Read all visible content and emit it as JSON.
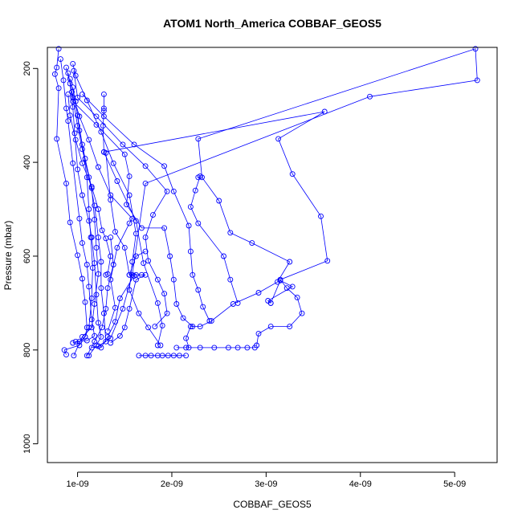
{
  "chart_data": {
    "type": "line",
    "title": "ATOM1 North_America COBBAF_GEOS5",
    "xlabel": "COBBAF_GEOS5",
    "ylabel": "Pressure (mbar)",
    "xlim": [
      6.8e-10,
      5.45e-09
    ],
    "ylim": [
      1040,
      155
    ],
    "y_reversed": true,
    "grid": false,
    "color": "#0000ff",
    "marker": "open-circle",
    "x_ticks": [
      {
        "value": 1e-09,
        "label": "1e-09"
      },
      {
        "value": 2e-09,
        "label": "2e-09"
      },
      {
        "value": 3e-09,
        "label": "3e-09"
      },
      {
        "value": 4e-09,
        "label": "4e-09"
      },
      {
        "value": 5e-09,
        "label": "5e-09"
      }
    ],
    "y_ticks": [
      {
        "value": 200,
        "label": "200"
      },
      {
        "value": 400,
        "label": "400"
      },
      {
        "value": 600,
        "label": "600"
      },
      {
        "value": 800,
        "label": "800"
      },
      {
        "value": 1000,
        "label": "1000"
      }
    ],
    "series": [
      {
        "points": [
          [
            1.65e-09,
            812
          ],
          [
            1.72e-09,
            812
          ],
          [
            1.78e-09,
            812
          ],
          [
            1.85e-09,
            812
          ],
          [
            1.9e-09,
            812
          ],
          [
            1.96e-09,
            812
          ],
          [
            2.02e-09,
            812
          ],
          [
            2.08e-09,
            812
          ],
          [
            2.15e-09,
            812
          ]
        ]
      },
      {
        "points": [
          [
            2.05e-09,
            795
          ],
          [
            2.15e-09,
            795
          ],
          [
            2.3e-09,
            795
          ],
          [
            2.45e-09,
            795
          ],
          [
            2.6e-09,
            795
          ],
          [
            2.7e-09,
            795
          ],
          [
            2.8e-09,
            795
          ],
          [
            2.88e-09,
            795
          ]
        ]
      },
      {
        "points": [
          [
            2.18e-09,
            795
          ],
          [
            2.15e-09,
            775
          ],
          [
            2.2e-09,
            750
          ],
          [
            2.3e-09,
            750
          ],
          [
            2.42e-09,
            738
          ],
          [
            2.65e-09,
            702
          ],
          [
            2.92e-09,
            678
          ],
          [
            3.12e-09,
            655
          ],
          [
            3.25e-09,
            612
          ],
          [
            2.85e-09,
            572
          ],
          [
            2.62e-09,
            550
          ],
          [
            2.5e-09,
            482
          ],
          [
            2.32e-09,
            432
          ],
          [
            2.28e-09,
            350
          ],
          [
            5.22e-09,
            158
          ],
          [
            5.24e-09,
            225
          ],
          [
            4.1e-09,
            260
          ],
          [
            1.72e-09,
            445
          ],
          [
            1.58e-09,
            640
          ],
          [
            1.48e-09,
            712
          ],
          [
            1.35e-09,
            775
          ],
          [
            1.22e-09,
            792
          ]
        ]
      },
      {
        "points": [
          [
            2.9e-09,
            790
          ],
          [
            2.92e-09,
            765
          ],
          [
            3.05e-09,
            750
          ],
          [
            3.25e-09,
            750
          ],
          [
            3.38e-09,
            722
          ],
          [
            3.33e-09,
            688
          ],
          [
            3.22e-09,
            668
          ],
          [
            3.15e-09,
            650
          ],
          [
            3.65e-09,
            610
          ],
          [
            3.58e-09,
            515
          ],
          [
            3.28e-09,
            425
          ],
          [
            3.13e-09,
            350
          ],
          [
            3.62e-09,
            292
          ],
          [
            1.28e-09,
            378
          ],
          [
            1.42e-09,
            440
          ],
          [
            1.62e-09,
            525
          ],
          [
            1.7e-09,
            615
          ],
          [
            1.85e-09,
            700
          ],
          [
            1.9e-09,
            748
          ],
          [
            1.85e-09,
            790
          ]
        ]
      },
      {
        "points": [
          [
            1.88e-09,
            790
          ],
          [
            1.75e-09,
            752
          ],
          [
            1.65e-09,
            722
          ],
          [
            1.55e-09,
            672
          ],
          [
            1.58e-09,
            612
          ],
          [
            1.62e-09,
            552
          ],
          [
            1.55e-09,
            470
          ],
          [
            1.38e-09,
            402
          ],
          [
            1.25e-09,
            335
          ],
          [
            1.1e-09,
            268
          ],
          [
            9.8e-10,
            215
          ],
          [
            9.5e-10,
            190
          ]
        ]
      },
      {
        "points": [
          [
            1.82e-09,
            750
          ],
          [
            1.95e-09,
            722
          ],
          [
            1.92e-09,
            680
          ],
          [
            1.85e-09,
            650
          ],
          [
            1.75e-09,
            610
          ],
          [
            1.72e-09,
            560
          ],
          [
            1.8e-09,
            512
          ],
          [
            1.95e-09,
            462
          ],
          [
            1.72e-09,
            408
          ],
          [
            1.48e-09,
            362
          ],
          [
            1.2e-09,
            302
          ],
          [
            1e-09,
            262
          ],
          [
            9.6e-10,
            205
          ]
        ]
      },
      {
        "points": [
          [
            2.22e-09,
            750
          ],
          [
            2.12e-09,
            732
          ],
          [
            2.05e-09,
            702
          ],
          [
            2.02e-09,
            650
          ],
          [
            1.98e-09,
            600
          ],
          [
            1.92e-09,
            540
          ],
          [
            1.68e-09,
            540
          ],
          [
            1.52e-09,
            490
          ],
          [
            1.55e-09,
            430
          ],
          [
            1.5e-09,
            383
          ],
          [
            1.2e-09,
            320
          ],
          [
            9.5e-10,
            270
          ]
        ]
      },
      {
        "points": [
          [
            2.4e-09,
            738
          ],
          [
            2.33e-09,
            708
          ],
          [
            2.28e-09,
            672
          ],
          [
            2.22e-09,
            640
          ],
          [
            2.2e-09,
            590
          ],
          [
            2.18e-09,
            535
          ],
          [
            2.02e-09,
            462
          ],
          [
            1.92e-09,
            408
          ],
          [
            1.6e-09,
            362
          ],
          [
            1.28e-09,
            302
          ],
          [
            1.05e-09,
            255
          ]
        ]
      },
      {
        "points": [
          [
            2.7e-09,
            700
          ],
          [
            2.62e-09,
            650
          ],
          [
            2.55e-09,
            600
          ],
          [
            2.28e-09,
            530
          ],
          [
            2.2e-09,
            495
          ],
          [
            2.25e-09,
            460
          ],
          [
            2.3e-09,
            430
          ],
          [
            2.28e-09,
            432
          ]
        ]
      },
      {
        "points": [
          [
            3.05e-09,
            700
          ],
          [
            3.02e-09,
            695
          ],
          [
            3.28e-09,
            665
          ],
          [
            3.15e-09,
            652
          ],
          [
            3.05e-09,
            700
          ]
        ]
      },
      {
        "points": [
          [
            1.72e-09,
            590
          ],
          [
            1.62e-09,
            600
          ],
          [
            1.55e-09,
            640
          ],
          [
            1.62e-09,
            640
          ],
          [
            1.68e-09,
            640
          ],
          [
            1.72e-09,
            640
          ],
          [
            1.62e-09,
            650
          ],
          [
            1.55e-09,
            712
          ],
          [
            1.5e-09,
            752
          ],
          [
            1.45e-09,
            770
          ],
          [
            1.35e-09,
            785
          ]
        ]
      },
      {
        "points": [
          [
            1.32e-09,
            760
          ],
          [
            1.4e-09,
            710
          ],
          [
            1.35e-09,
            650
          ],
          [
            1.42e-09,
            582
          ],
          [
            1.55e-09,
            530
          ],
          [
            1.58e-09,
            520
          ],
          [
            1.35e-09,
            470
          ],
          [
            1.22e-09,
            410
          ],
          [
            1.12e-09,
            352
          ],
          [
            1.02e-09,
            302
          ],
          [
            9.4e-10,
            250
          ]
        ]
      },
      {
        "points": [
          [
            1.3e-09,
            640
          ],
          [
            1.32e-09,
            638
          ],
          [
            1.35e-09,
            600
          ],
          [
            1.3e-09,
            562
          ],
          [
            1.26e-09,
            545
          ],
          [
            1.22e-09,
            500
          ],
          [
            1.15e-09,
            452
          ],
          [
            1.05e-09,
            402
          ],
          [
            9.8e-10,
            352
          ],
          [
            9.2e-10,
            300
          ],
          [
            9e-10,
            255
          ]
        ]
      },
      {
        "points": [
          [
            1.28e-09,
            255
          ],
          [
            1.28e-09,
            285
          ],
          [
            1.28e-09,
            290
          ],
          [
            1.27e-09,
            322
          ],
          [
            1.28e-09,
            378
          ]
        ]
      },
      {
        "points": [
          [
            8e-10,
            158
          ],
          [
            7.8e-10,
            198
          ],
          [
            7.6e-10,
            212
          ],
          [
            8e-10,
            242
          ],
          [
            7.8e-10,
            350
          ],
          [
            8.8e-10,
            445
          ],
          [
            9.2e-10,
            528
          ],
          [
            1e-09,
            598
          ],
          [
            1.05e-09,
            648
          ],
          [
            1.08e-09,
            698
          ],
          [
            1.1e-09,
            752
          ],
          [
            1.08e-09,
            772
          ],
          [
            1.02e-09,
            790
          ],
          [
            8.6e-10,
            800
          ],
          [
            8.8e-10,
            810
          ]
        ]
      },
      {
        "points": [
          [
            8.2e-10,
            180
          ],
          [
            8.5e-10,
            225
          ],
          [
            8.8e-10,
            285
          ],
          [
            9e-10,
            312
          ],
          [
            9.5e-10,
            402
          ],
          [
            1.02e-09,
            520
          ],
          [
            1.05e-09,
            572
          ],
          [
            1.1e-09,
            618
          ],
          [
            1.12e-09,
            665
          ],
          [
            1.15e-09,
            735
          ],
          [
            1.18e-09,
            770
          ],
          [
            1.1e-09,
            780
          ],
          [
            9.8e-10,
            782
          ]
        ]
      },
      {
        "points": [
          [
            8.8e-10,
            198
          ],
          [
            9.2e-10,
            232
          ],
          [
            9.5e-10,
            282
          ],
          [
            9.7e-10,
            338
          ],
          [
            1e-09,
            415
          ],
          [
            1.05e-09,
            470
          ],
          [
            1.12e-09,
            525
          ],
          [
            1.15e-09,
            560
          ],
          [
            1.18e-09,
            615
          ],
          [
            1.2e-09,
            682
          ],
          [
            1.22e-09,
            742
          ],
          [
            1.25e-09,
            772
          ],
          [
            1.2e-09,
            790
          ],
          [
            1.12e-09,
            812
          ]
        ]
      },
      {
        "points": [
          [
            9e-10,
            210
          ],
          [
            9.5e-10,
            262
          ],
          [
            1e-09,
            322
          ],
          [
            1.05e-09,
            372
          ],
          [
            1.12e-09,
            432
          ],
          [
            1.18e-09,
            492
          ],
          [
            1.22e-09,
            560
          ],
          [
            1.25e-09,
            612
          ],
          [
            1.25e-09,
            668
          ],
          [
            1.28e-09,
            722
          ],
          [
            1.3e-09,
            782
          ],
          [
            1.22e-09,
            792
          ],
          [
            1.15e-09,
            795
          ]
        ]
      },
      {
        "points": [
          [
            9.2e-10,
            222
          ],
          [
            9.8e-10,
            270
          ],
          [
            1.02e-09,
            332
          ],
          [
            1.08e-09,
            392
          ],
          [
            1.15e-09,
            455
          ],
          [
            1.18e-09,
            522
          ],
          [
            1.2e-09,
            582
          ],
          [
            1.22e-09,
            638
          ],
          [
            1.18e-09,
            702
          ],
          [
            1.15e-09,
            752
          ],
          [
            1.05e-09,
            772
          ],
          [
            9.6e-10,
            812
          ]
        ]
      },
      {
        "points": [
          [
            9.5e-10,
            240
          ],
          [
            1e-09,
            300
          ],
          [
            1.05e-09,
            362
          ],
          [
            1.1e-09,
            432
          ],
          [
            1.12e-09,
            500
          ],
          [
            1.14e-09,
            560
          ],
          [
            1.16e-09,
            625
          ],
          [
            1.15e-09,
            690
          ],
          [
            1.12e-09,
            752
          ],
          [
            1.08e-09,
            772
          ],
          [
            1.02e-09,
            782
          ],
          [
            9.5e-10,
            785
          ]
        ]
      },
      {
        "points": [
          [
            1.3e-09,
            380
          ],
          [
            1.35e-09,
            480
          ],
          [
            1.4e-09,
            548
          ],
          [
            1.5e-09,
            582
          ],
          [
            1.55e-09,
            640
          ],
          [
            1.6e-09,
            642
          ],
          [
            1.45e-09,
            690
          ],
          [
            1.4e-09,
            740
          ],
          [
            1.32e-09,
            772
          ],
          [
            1.25e-09,
            795
          ]
        ]
      },
      {
        "points": [
          [
            1.35e-09,
            560
          ],
          [
            1.38e-09,
            618
          ],
          [
            1.32e-09,
            668
          ],
          [
            1.3e-09,
            712
          ],
          [
            1.26e-09,
            752
          ],
          [
            1.18e-09,
            782
          ],
          [
            1.1e-09,
            812
          ]
        ]
      }
    ]
  }
}
